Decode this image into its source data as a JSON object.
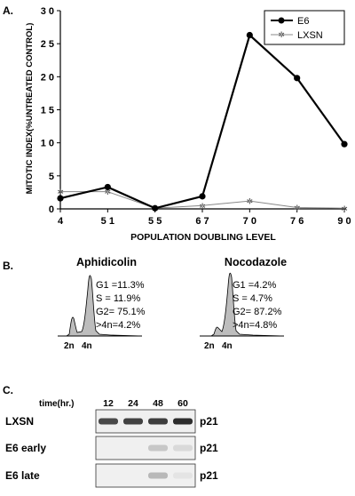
{
  "panels": {
    "a": {
      "label": "A."
    },
    "b": {
      "label": "B."
    },
    "c": {
      "label": "C."
    }
  },
  "chart_data": {
    "type": "line",
    "x": [
      "4",
      "5 1",
      "5 5",
      "6 7",
      "7 0",
      "7 6",
      "9 0"
    ],
    "series": [
      {
        "name": "E6",
        "values": [
          1.6,
          3.3,
          0.1,
          1.9,
          26.3,
          19.8,
          9.8
        ]
      },
      {
        "name": "LXSN",
        "values": [
          2.6,
          2.6,
          0.1,
          0.5,
          1.2,
          0.2,
          0.1
        ]
      }
    ],
    "title": "",
    "xlabel": "POPULATION DOUBLING LEVEL",
    "ylabel": "MITOTIC INDEX(%UNTREATED CONTROL)",
    "ylim": [
      0,
      30
    ],
    "yticks": [
      "0",
      "5",
      "1 0",
      "1 5",
      "2 0",
      "2 5",
      "3 0"
    ],
    "legend": "top-right",
    "grid": false
  },
  "flow": [
    {
      "title": "Aphidicolin",
      "stats": [
        "G1 =11.3%",
        "S =   11.9%",
        "G2=  75.1%",
        ">4n=4.2%"
      ],
      "axis_labels": [
        "2n",
        "4n"
      ]
    },
    {
      "title": "Nocodazole",
      "stats": [
        "G1 =4.2%",
        "S =   4.7%",
        "G2=  87.2%",
        ">4n=4.8%"
      ],
      "axis_labels": [
        "2n",
        "4n"
      ]
    }
  ],
  "blot": {
    "time_label": "time(hr.)",
    "times": [
      "12",
      "24",
      "48",
      "60"
    ],
    "rows": [
      {
        "label": "LXSN",
        "band": "p21",
        "intensity": [
          0.75,
          0.78,
          0.8,
          0.88
        ]
      },
      {
        "label": "E6 early",
        "band": "p21",
        "intensity": [
          0.0,
          0.0,
          0.18,
          0.1
        ]
      },
      {
        "label": "E6 late",
        "band": "p21",
        "intensity": [
          0.0,
          0.0,
          0.25,
          0.05
        ]
      }
    ]
  }
}
